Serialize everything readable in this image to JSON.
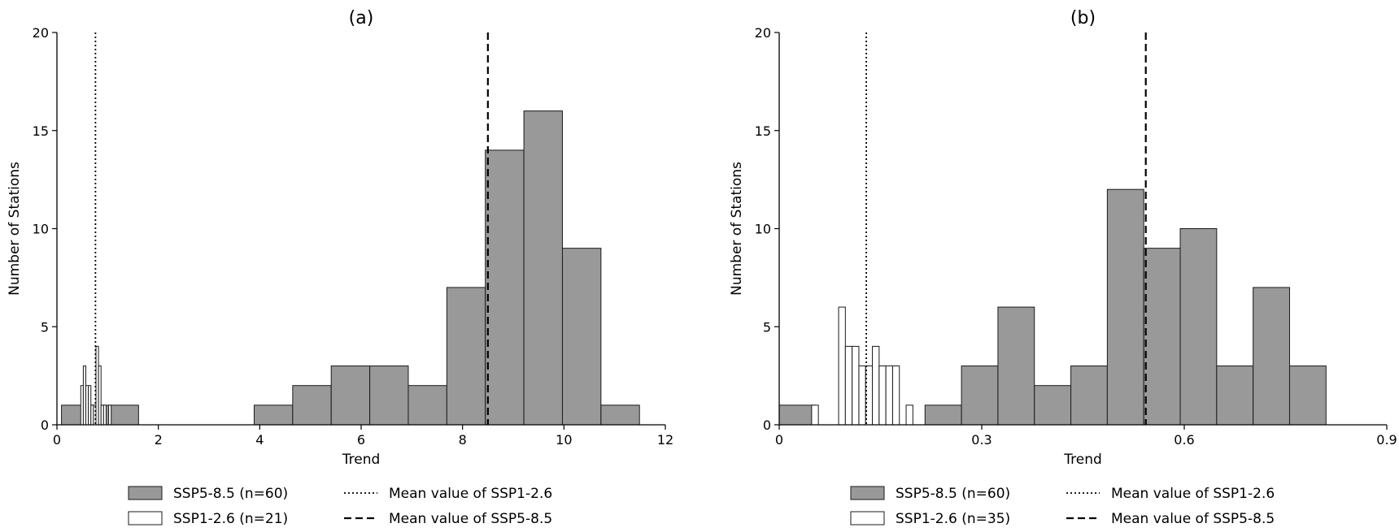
{
  "chart_data": [
    {
      "type": "histogram",
      "title": "(a)",
      "xlabel": "Trend",
      "ylabel": "Number of Stations",
      "xlim": [
        0,
        12
      ],
      "ylim": [
        0,
        20
      ],
      "xticks": [
        0,
        2,
        4,
        6,
        8,
        10,
        12
      ],
      "xtick_labels": [
        "0",
        "2",
        "4",
        "6",
        "8",
        "10",
        "12"
      ],
      "yticks": [
        0,
        5,
        10,
        15,
        20
      ],
      "ytick_labels": [
        "0",
        "5",
        "10",
        "15",
        "20"
      ],
      "grid": false,
      "legend_position": "bottom",
      "series": [
        {
          "name": "SSP5-8.5 (n=60)",
          "color": "#999999",
          "bin_edges": [
            0.09,
            0.85,
            1.61,
            2.37,
            3.13,
            3.89,
            4.65,
            5.41,
            6.17,
            6.93,
            7.69,
            8.45,
            9.21,
            9.97,
            10.73,
            11.49
          ],
          "counts": [
            1,
            1,
            0,
            0,
            0,
            1,
            2,
            3,
            3,
            2,
            7,
            14,
            16,
            9,
            1
          ]
        },
        {
          "name": "SSP1-2.6 (n=21)",
          "color": "#ffffff",
          "bin_edges": [
            0.47,
            0.52,
            0.57,
            0.62,
            0.67,
            0.72,
            0.77,
            0.82,
            0.87,
            0.92,
            0.97,
            1.02,
            1.07,
            1.12
          ],
          "counts": [
            2,
            3,
            2,
            2,
            1,
            1,
            4,
            3,
            1,
            1,
            0,
            1,
            0
          ]
        }
      ],
      "reference_lines": [
        {
          "name": "Mean value of SSP1-2.6",
          "x": 0.76,
          "style": "dotted"
        },
        {
          "name": "Mean value of SSP5-8.5",
          "x": 8.5,
          "style": "dashed"
        }
      ]
    },
    {
      "type": "histogram",
      "title": "(b)",
      "xlabel": "Trend",
      "ylabel": "Number of Stations",
      "xlim": [
        0,
        0.9
      ],
      "ylim": [
        0,
        20
      ],
      "xticks": [
        0,
        0.3,
        0.6,
        0.9
      ],
      "xtick_labels": [
        "0",
        "0.3",
        "0.6",
        "0.9"
      ],
      "yticks": [
        0,
        5,
        10,
        15,
        20
      ],
      "ytick_labels": [
        "0",
        "5",
        "10",
        "15",
        "20"
      ],
      "grid": false,
      "legend_position": "bottom",
      "series": [
        {
          "name": "SSP5-8.5 (n=60)",
          "color": "#999999",
          "bin_edges": [
            0.0,
            0.054,
            0.108,
            0.162,
            0.216,
            0.27,
            0.324,
            0.378,
            0.432,
            0.486,
            0.54,
            0.594,
            0.648,
            0.702,
            0.756,
            0.81
          ],
          "counts": [
            1,
            0,
            0,
            0,
            1,
            3,
            6,
            2,
            3,
            12,
            9,
            10,
            3,
            7,
            3
          ]
        },
        {
          "name": "SSP1-2.6 (n=35)",
          "color": "#ffffff",
          "bin_edges": [
            0.048,
            0.058,
            0.068,
            0.078,
            0.088,
            0.098,
            0.108,
            0.118,
            0.128,
            0.138,
            0.148,
            0.158,
            0.168,
            0.178,
            0.188,
            0.198
          ],
          "counts": [
            1,
            0,
            0,
            0,
            6,
            4,
            4,
            3,
            3,
            4,
            3,
            3,
            3,
            0,
            1
          ]
        }
      ],
      "reference_lines": [
        {
          "name": "Mean value of SSP1-2.6",
          "x": 0.129,
          "style": "dotted"
        },
        {
          "name": "Mean value of SSP5-8.5",
          "x": 0.543,
          "style": "dashed"
        }
      ]
    }
  ]
}
